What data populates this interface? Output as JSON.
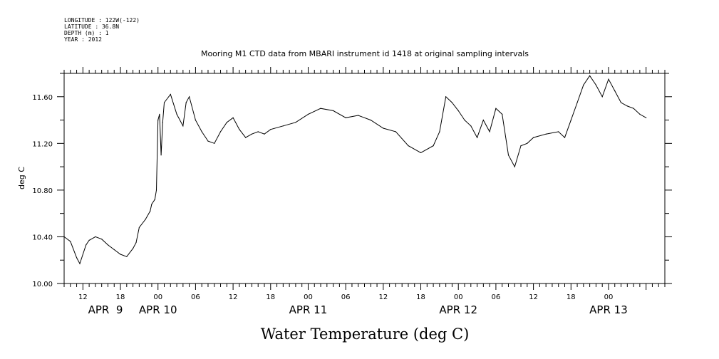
{
  "meta_lines": [
    "LONGITUDE : 122W(-122)",
    "LATITUDE : 36.8N",
    "DEPTH (m) : 1",
    "YEAR : 2012"
  ],
  "chart_data": {
    "type": "line",
    "title": "Mooring M1 CTD data from MBARI instrument id 1418 at original sampling intervals",
    "xlabel": "Water Temperature (deg C)",
    "ylabel": "deg C",
    "ylim": [
      10.0,
      11.8
    ],
    "yticks": [
      "10.00",
      "10.40",
      "10.80",
      "11.20",
      "11.60"
    ],
    "xlim_hours": [
      9.0,
      105.0
    ],
    "xtick_labels": [
      "12",
      "18",
      "00",
      "06",
      "12",
      "18",
      "00",
      "06",
      "12",
      "18",
      "00",
      "06",
      "12",
      "18",
      "00"
    ],
    "date_labels": [
      "APR  9",
      "APR 10",
      "APR 11",
      "APR 12",
      "APR 13"
    ],
    "grid": false,
    "series": [
      {
        "color": "#000000",
        "x": [
          "2012-04-09 09:00",
          "2012-04-09 10:00",
          "2012-04-09 11:00",
          "2012-04-09 11:30",
          "2012-04-09 12:30",
          "2012-04-09 13:00",
          "2012-04-09 14:00",
          "2012-04-09 15:00",
          "2012-04-09 16:00",
          "2012-04-09 17:00",
          "2012-04-09 18:00",
          "2012-04-09 19:00",
          "2012-04-09 20:00",
          "2012-04-09 20:30",
          "2012-04-09 21:00",
          "2012-04-09 22:00",
          "2012-04-09 22:45",
          "2012-04-09 23:00",
          "2012-04-09 23:30",
          "2012-04-09 23:45",
          "2012-04-10 00:00",
          "2012-04-10 00:15",
          "2012-04-10 00:30",
          "2012-04-10 00:45",
          "2012-04-10 01:00",
          "2012-04-10 02:00",
          "2012-04-10 03:00",
          "2012-04-10 04:00",
          "2012-04-10 04:30",
          "2012-04-10 05:00",
          "2012-04-10 06:00",
          "2012-04-10 07:00",
          "2012-04-10 08:00",
          "2012-04-10 09:00",
          "2012-04-10 10:00",
          "2012-04-10 11:00",
          "2012-04-10 12:00",
          "2012-04-10 13:00",
          "2012-04-10 14:00",
          "2012-04-10 15:00",
          "2012-04-10 16:00",
          "2012-04-10 17:00",
          "2012-04-10 18:00",
          "2012-04-10 20:00",
          "2012-04-10 22:00",
          "2012-04-11 00:00",
          "2012-04-11 02:00",
          "2012-04-11 04:00",
          "2012-04-11 06:00",
          "2012-04-11 08:00",
          "2012-04-11 10:00",
          "2012-04-11 12:00",
          "2012-04-11 14:00",
          "2012-04-11 16:00",
          "2012-04-11 18:00",
          "2012-04-11 20:00",
          "2012-04-11 21:00",
          "2012-04-11 22:00",
          "2012-04-11 23:00",
          "2012-04-12 00:00",
          "2012-04-12 01:00",
          "2012-04-12 02:00",
          "2012-04-12 03:00",
          "2012-04-12 04:00",
          "2012-04-12 05:00",
          "2012-04-12 06:00",
          "2012-04-12 07:00",
          "2012-04-12 08:00",
          "2012-04-12 09:00",
          "2012-04-12 10:00",
          "2012-04-12 11:00",
          "2012-04-12 12:00",
          "2012-04-12 14:00",
          "2012-04-12 16:00",
          "2012-04-12 17:00",
          "2012-04-12 18:00",
          "2012-04-12 19:00",
          "2012-04-12 20:00",
          "2012-04-12 21:00",
          "2012-04-12 22:00",
          "2012-04-12 23:00",
          "2012-04-13 00:00",
          "2012-04-13 01:00",
          "2012-04-13 02:00",
          "2012-04-13 03:00",
          "2012-04-13 04:00",
          "2012-04-13 05:00",
          "2012-04-13 06:00"
        ],
        "y": [
          10.4,
          10.36,
          10.22,
          10.17,
          10.33,
          10.37,
          10.4,
          10.38,
          10.33,
          10.29,
          10.25,
          10.23,
          10.3,
          10.35,
          10.48,
          10.55,
          10.62,
          10.68,
          10.72,
          10.8,
          11.4,
          11.45,
          11.1,
          11.38,
          11.55,
          11.62,
          11.45,
          11.35,
          11.55,
          11.6,
          11.4,
          11.3,
          11.22,
          11.2,
          11.3,
          11.38,
          11.42,
          11.32,
          11.25,
          11.28,
          11.3,
          11.28,
          11.32,
          11.35,
          11.38,
          11.45,
          11.5,
          11.48,
          11.42,
          11.44,
          11.4,
          11.33,
          11.3,
          11.18,
          11.12,
          11.18,
          11.3,
          11.6,
          11.55,
          11.48,
          11.4,
          11.35,
          11.25,
          11.4,
          11.3,
          11.5,
          11.45,
          11.1,
          11.0,
          11.18,
          11.2,
          11.25,
          11.28,
          11.3,
          11.25,
          11.4,
          11.55,
          11.7,
          11.78,
          11.7,
          11.6,
          11.75,
          11.65,
          11.55,
          11.52,
          11.5,
          11.45,
          11.42
        ]
      }
    ]
  }
}
